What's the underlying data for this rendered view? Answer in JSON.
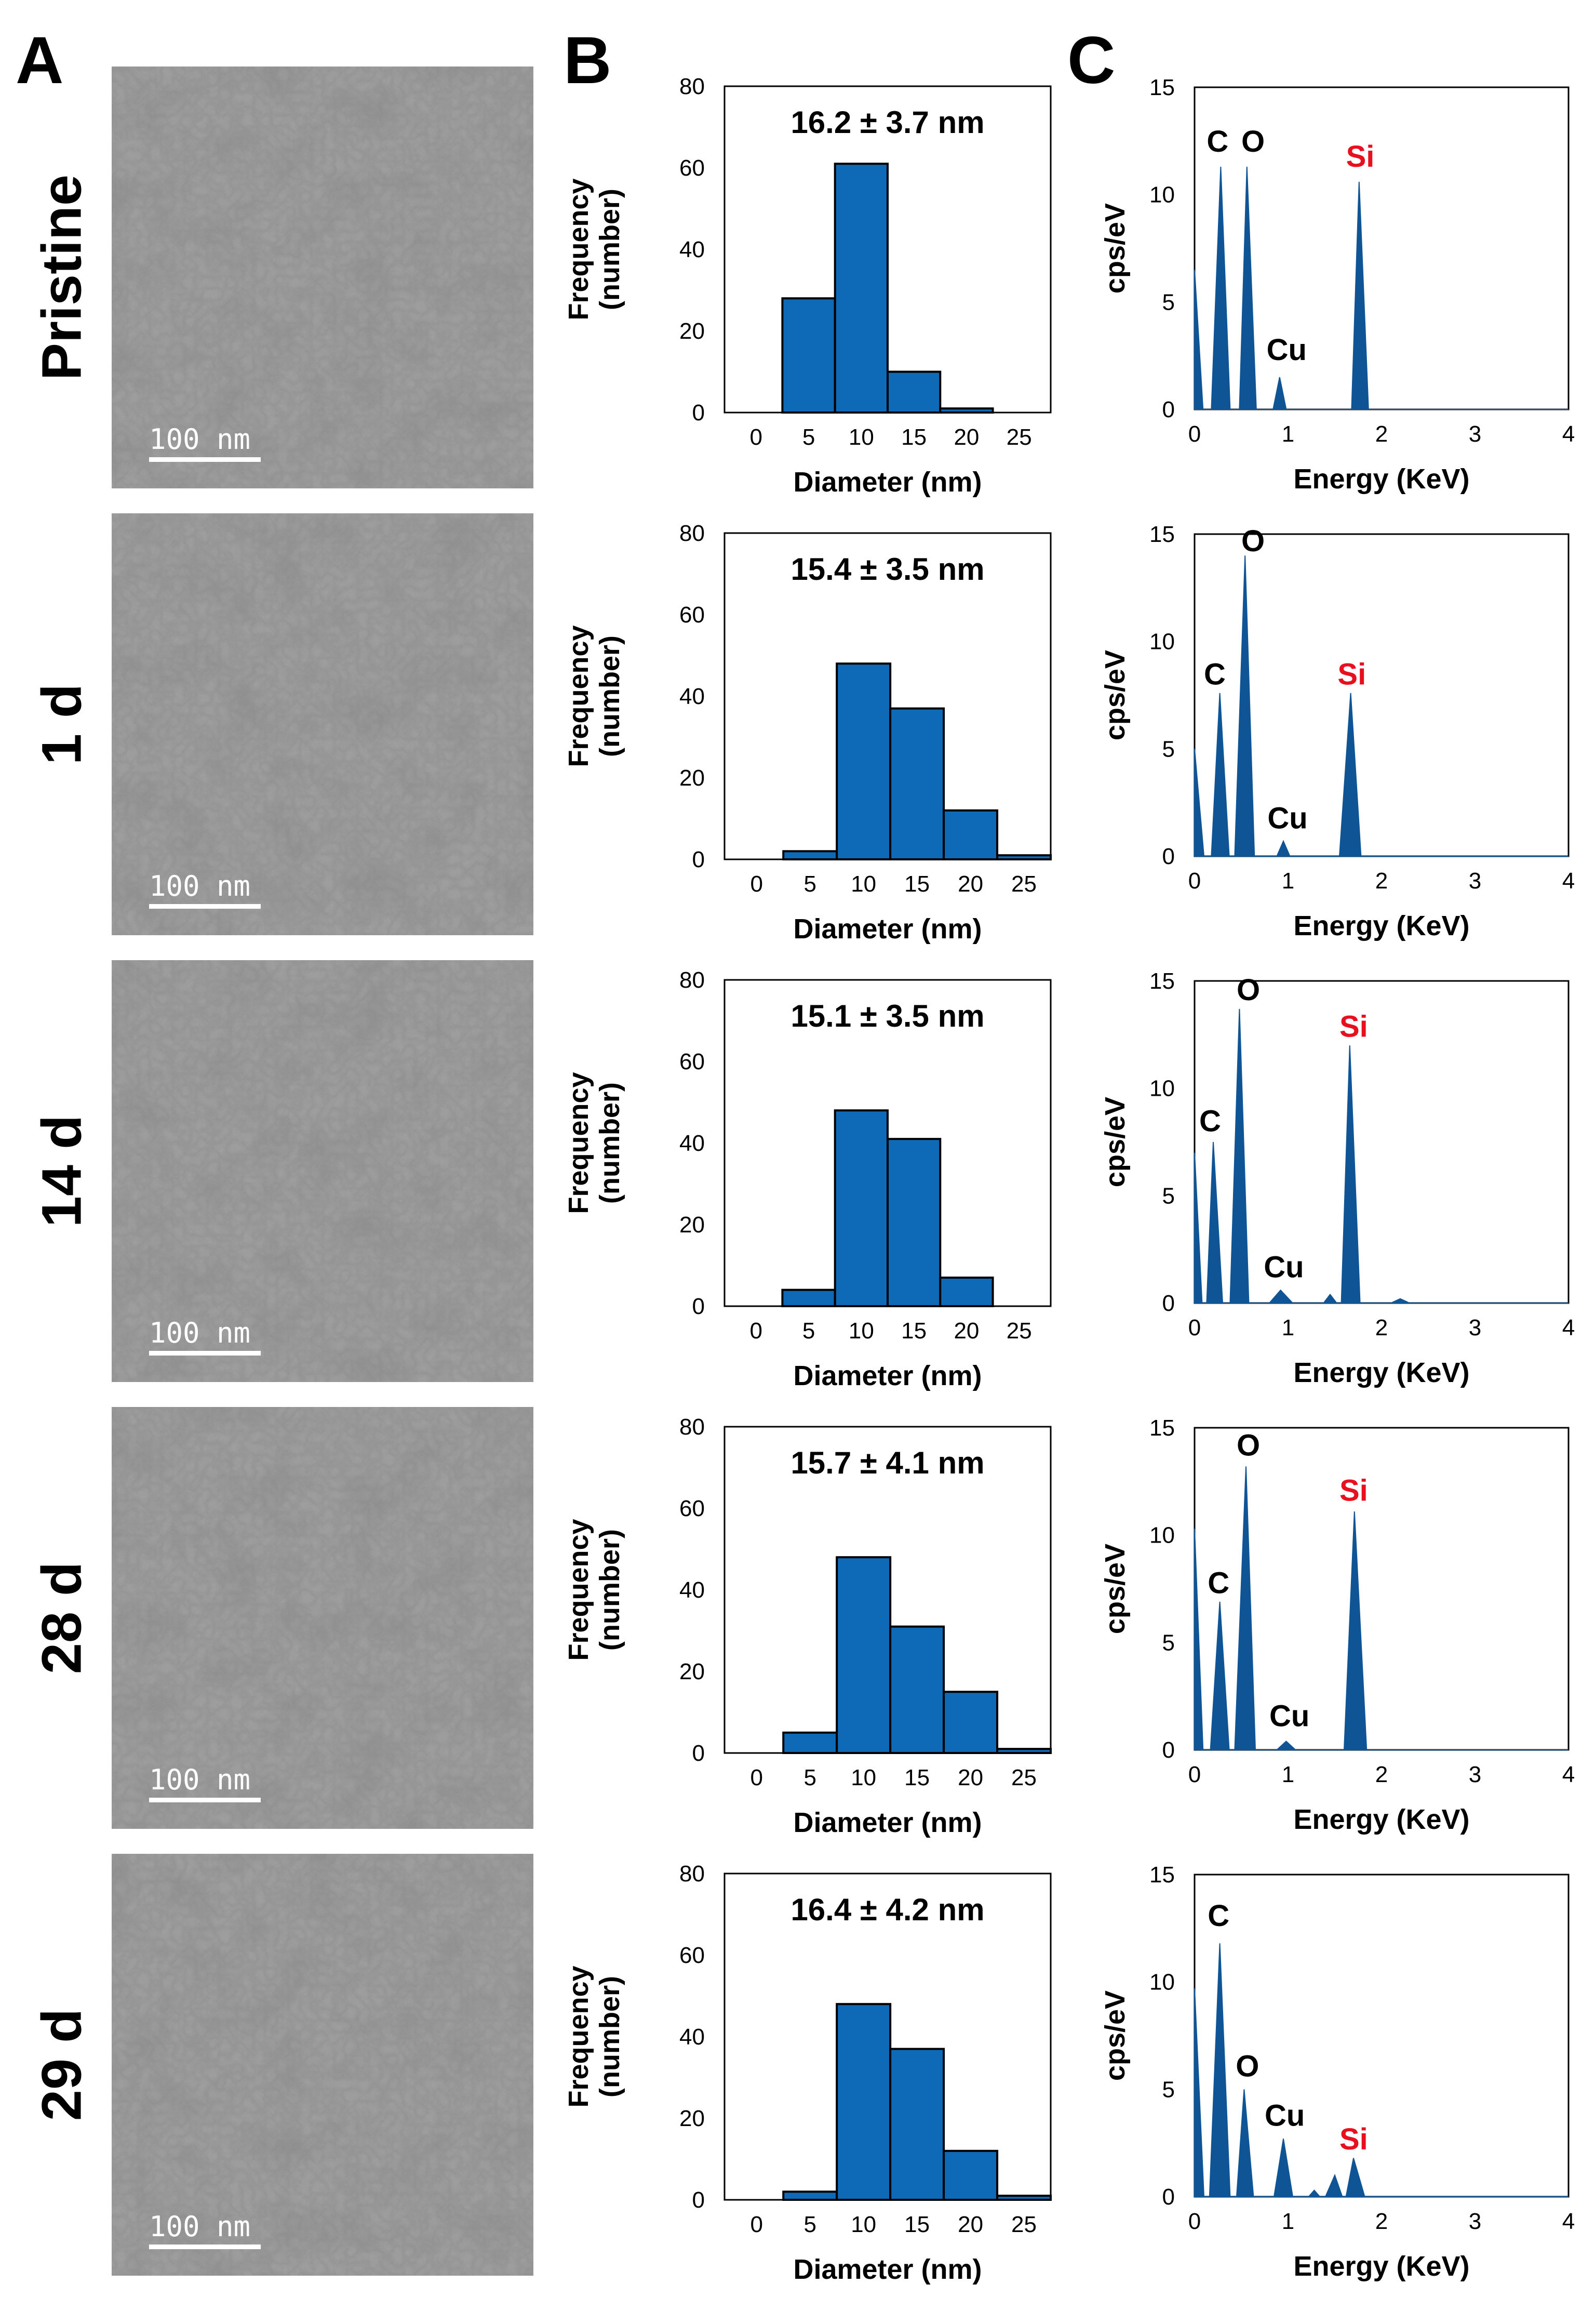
{
  "panel_labels": [
    "A",
    "B",
    "C"
  ],
  "scale_bar_label": "100 nm",
  "colors": {
    "bar_fill": "#0E6AB7",
    "bar_edge": "#000000",
    "peak_fill": "#0F5596",
    "si_label": "#E8101E",
    "text": "#000000"
  },
  "chart_data": [
    {
      "row": "Pristine",
      "type": "bar",
      "panel": "B",
      "annotation": "16.2 ± 3.7 nm",
      "bins": [
        [
          2.5,
          7.5
        ],
        [
          7.5,
          12.5
        ],
        [
          12.5,
          17.5
        ],
        [
          17.5,
          22.5
        ]
      ],
      "values": [
        28,
        61,
        10,
        1
      ],
      "xticks": [
        0,
        5,
        10,
        15,
        20,
        25
      ],
      "xlim": [
        -3,
        28
      ],
      "yticks": [
        0,
        20,
        40,
        60,
        80
      ],
      "ylim": [
        0,
        80
      ],
      "xlabel": "Diameter (nm)",
      "ylabel_line1": "Frequency",
      "ylabel_line2": "(number)"
    },
    {
      "row": "1 d",
      "type": "bar",
      "panel": "B",
      "annotation": "15.4 ± 3.5 nm",
      "bins": [
        [
          2.5,
          7.5
        ],
        [
          7.5,
          12.5
        ],
        [
          12.5,
          17.5
        ],
        [
          17.5,
          22.5
        ],
        [
          22.5,
          27.5
        ]
      ],
      "values": [
        2,
        48,
        37,
        12,
        1
      ],
      "xticks": [
        0,
        5,
        10,
        15,
        20,
        25
      ],
      "xlim": [
        -3,
        27.5
      ],
      "yticks": [
        0,
        20,
        40,
        60,
        80
      ],
      "ylim": [
        0,
        80
      ],
      "xlabel": "Diameter (nm)",
      "ylabel_line1": "Frequency",
      "ylabel_line2": "(number)"
    },
    {
      "row": "14 d",
      "type": "bar",
      "panel": "B",
      "annotation": "15.1 ± 3.5 nm",
      "bins": [
        [
          2.5,
          7.5
        ],
        [
          7.5,
          12.5
        ],
        [
          12.5,
          17.5
        ],
        [
          17.5,
          22.5
        ]
      ],
      "values": [
        4,
        48,
        41,
        7
      ],
      "xticks": [
        0,
        5,
        10,
        15,
        20,
        25
      ],
      "xlim": [
        -3,
        28
      ],
      "yticks": [
        0,
        20,
        40,
        60,
        80
      ],
      "ylim": [
        0,
        80
      ],
      "xlabel": "Diameter (nm)",
      "ylabel_line1": "Frequency",
      "ylabel_line2": "(number)"
    },
    {
      "row": "28 d",
      "type": "bar",
      "panel": "B",
      "annotation": "15.7 ± 4.1 nm",
      "bins": [
        [
          2.5,
          7.5
        ],
        [
          7.5,
          12.5
        ],
        [
          12.5,
          17.5
        ],
        [
          17.5,
          22.5
        ],
        [
          22.5,
          27.5
        ]
      ],
      "values": [
        5,
        48,
        31,
        15,
        1
      ],
      "xticks": [
        0,
        5,
        10,
        15,
        20,
        25
      ],
      "xlim": [
        -3,
        27.5
      ],
      "yticks": [
        0,
        20,
        40,
        60,
        80
      ],
      "ylim": [
        0,
        80
      ],
      "xlabel": "Diameter (nm)",
      "ylabel_line1": "Frequency",
      "ylabel_line2": "(number)"
    },
    {
      "row": "29 d",
      "type": "bar",
      "panel": "B",
      "annotation": "16.4 ± 4.2 nm",
      "bins": [
        [
          2.5,
          7.5
        ],
        [
          7.5,
          12.5
        ],
        [
          12.5,
          17.5
        ],
        [
          17.5,
          22.5
        ],
        [
          22.5,
          27.5
        ]
      ],
      "values": [
        2,
        48,
        37,
        12,
        1
      ],
      "xticks": [
        0,
        5,
        10,
        15,
        20,
        25
      ],
      "xlim": [
        -3,
        27.5
      ],
      "yticks": [
        0,
        20,
        40,
        60,
        80
      ],
      "ylim": [
        0,
        80
      ],
      "xlabel": "Diameter (nm)",
      "ylabel_line1": "Frequency",
      "ylabel_line2": "(number)"
    },
    {
      "row": "Pristine",
      "type": "area",
      "panel": "C",
      "xlabel": "Energy (KeV)",
      "ylabel": "cps/eV",
      "xticks": [
        0,
        1,
        2,
        3,
        4
      ],
      "xlim": [
        0,
        4
      ],
      "yticks": [
        0,
        5,
        10,
        15
      ],
      "ylim": [
        0,
        15
      ],
      "spectrum": [
        [
          0,
          6.5
        ],
        [
          0.09,
          0
        ],
        [
          0.18,
          0
        ],
        [
          0.28,
          11.3
        ],
        [
          0.38,
          0
        ],
        [
          0.48,
          0
        ],
        [
          0.56,
          11.3
        ],
        [
          0.66,
          0
        ],
        [
          0.84,
          0
        ],
        [
          0.91,
          1.5
        ],
        [
          0.98,
          0
        ],
        [
          1.68,
          0
        ],
        [
          1.76,
          10.6
        ],
        [
          1.86,
          0
        ],
        [
          4,
          0
        ]
      ],
      "labels": [
        {
          "text": "C",
          "x": 0.13,
          "y": 12.0,
          "color": "#000000"
        },
        {
          "text": "O",
          "x": 0.5,
          "y": 12.0,
          "color": "#000000"
        },
        {
          "text": "Cu",
          "x": 0.77,
          "y": 2.3,
          "color": "#000000"
        },
        {
          "text": "Si",
          "x": 1.62,
          "y": 11.3,
          "color": "#E8101E"
        }
      ]
    },
    {
      "row": "1 d",
      "type": "area",
      "panel": "C",
      "xlabel": "Energy (KeV)",
      "ylabel": "cps/eV",
      "xticks": [
        0,
        1,
        2,
        3,
        4
      ],
      "xlim": [
        0,
        4
      ],
      "yticks": [
        0,
        5,
        10,
        15
      ],
      "ylim": [
        0,
        15
      ],
      "spectrum": [
        [
          0,
          5
        ],
        [
          0.1,
          0
        ],
        [
          0.18,
          0
        ],
        [
          0.27,
          7.6
        ],
        [
          0.37,
          0
        ],
        [
          0.43,
          0
        ],
        [
          0.54,
          14.0
        ],
        [
          0.64,
          0
        ],
        [
          0.88,
          0
        ],
        [
          0.95,
          0.7
        ],
        [
          1.02,
          0
        ],
        [
          1.55,
          0
        ],
        [
          1.67,
          7.6
        ],
        [
          1.78,
          0
        ],
        [
          4,
          0
        ]
      ],
      "labels": [
        {
          "text": "O",
          "x": 0.5,
          "y": 14.2,
          "color": "#000000"
        },
        {
          "text": "C",
          "x": 0.1,
          "y": 8.0,
          "color": "#000000"
        },
        {
          "text": "Cu",
          "x": 0.78,
          "y": 1.3,
          "color": "#000000"
        },
        {
          "text": "Si",
          "x": 1.53,
          "y": 8.0,
          "color": "#E8101E"
        }
      ]
    },
    {
      "row": "14 d",
      "type": "area",
      "panel": "C",
      "xlabel": "Energy (KeV)",
      "ylabel": "cps/eV",
      "xticks": [
        0,
        1,
        2,
        3,
        4
      ],
      "xlim": [
        0,
        4
      ],
      "yticks": [
        0,
        5,
        10,
        15
      ],
      "ylim": [
        0,
        15
      ],
      "spectrum": [
        [
          0,
          7
        ],
        [
          0.08,
          0
        ],
        [
          0.13,
          0
        ],
        [
          0.2,
          7.5
        ],
        [
          0.3,
          0
        ],
        [
          0.38,
          0
        ],
        [
          0.48,
          13.7
        ],
        [
          0.58,
          0
        ],
        [
          0.8,
          0
        ],
        [
          0.92,
          0.6
        ],
        [
          1.05,
          0
        ],
        [
          1.38,
          0
        ],
        [
          1.45,
          0.4
        ],
        [
          1.52,
          0
        ],
        [
          1.57,
          0
        ],
        [
          1.66,
          12.0
        ],
        [
          1.77,
          0
        ],
        [
          2.1,
          0
        ],
        [
          2.2,
          0.2
        ],
        [
          2.3,
          0
        ],
        [
          4,
          0
        ]
      ],
      "labels": [
        {
          "text": "O",
          "x": 0.45,
          "y": 14.1,
          "color": "#000000"
        },
        {
          "text": "C",
          "x": 0.05,
          "y": 8.0,
          "color": "#000000"
        },
        {
          "text": "Cu",
          "x": 0.74,
          "y": 1.2,
          "color": "#000000"
        },
        {
          "text": "Si",
          "x": 1.55,
          "y": 12.4,
          "color": "#E8101E"
        }
      ]
    },
    {
      "row": "28 d",
      "type": "area",
      "panel": "C",
      "xlabel": "Energy (KeV)",
      "ylabel": "cps/eV",
      "xticks": [
        0,
        1,
        2,
        3,
        4
      ],
      "xlim": [
        0,
        4
      ],
      "yticks": [
        0,
        5,
        10,
        15
      ],
      "ylim": [
        0,
        15
      ],
      "spectrum": [
        [
          0,
          10.3
        ],
        [
          0.09,
          0
        ],
        [
          0.17,
          0
        ],
        [
          0.27,
          6.9
        ],
        [
          0.37,
          0
        ],
        [
          0.43,
          0
        ],
        [
          0.55,
          13.2
        ],
        [
          0.65,
          0
        ],
        [
          0.88,
          0
        ],
        [
          0.98,
          0.4
        ],
        [
          1.08,
          0
        ],
        [
          1.6,
          0
        ],
        [
          1.71,
          11.1
        ],
        [
          1.84,
          0
        ],
        [
          4,
          0
        ]
      ],
      "labels": [
        {
          "text": "O",
          "x": 0.45,
          "y": 13.7,
          "color": "#000000"
        },
        {
          "text": "C",
          "x": 0.14,
          "y": 7.3,
          "color": "#000000"
        },
        {
          "text": "Cu",
          "x": 0.8,
          "y": 1.1,
          "color": "#000000"
        },
        {
          "text": "Si",
          "x": 1.55,
          "y": 11.6,
          "color": "#E8101E"
        }
      ]
    },
    {
      "row": "29 d",
      "type": "area",
      "panel": "C",
      "xlabel": "Energy (KeV)",
      "ylabel": "cps/eV",
      "xticks": [
        0,
        1,
        2,
        3,
        4
      ],
      "xlim": [
        0,
        4
      ],
      "yticks": [
        0,
        5,
        10,
        15
      ],
      "ylim": [
        0,
        15
      ],
      "spectrum": [
        [
          0,
          9.7
        ],
        [
          0.1,
          0
        ],
        [
          0.16,
          0
        ],
        [
          0.27,
          11.8
        ],
        [
          0.38,
          0
        ],
        [
          0.45,
          0
        ],
        [
          0.53,
          5.0
        ],
        [
          0.63,
          0
        ],
        [
          0.85,
          0
        ],
        [
          0.95,
          2.7
        ],
        [
          1.05,
          0
        ],
        [
          1.22,
          0
        ],
        [
          1.28,
          0.3
        ],
        [
          1.34,
          0
        ],
        [
          1.4,
          0
        ],
        [
          1.5,
          1.0
        ],
        [
          1.58,
          0
        ],
        [
          1.62,
          0
        ],
        [
          1.7,
          1.8
        ],
        [
          1.82,
          0
        ],
        [
          4,
          0
        ]
      ],
      "labels": [
        {
          "text": "C",
          "x": 0.14,
          "y": 12.6,
          "color": "#000000"
        },
        {
          "text": "O",
          "x": 0.44,
          "y": 5.6,
          "color": "#000000"
        },
        {
          "text": "Cu",
          "x": 0.75,
          "y": 3.3,
          "color": "#000000"
        },
        {
          "text": "Si",
          "x": 1.55,
          "y": 2.2,
          "color": "#E8101E"
        }
      ]
    }
  ]
}
